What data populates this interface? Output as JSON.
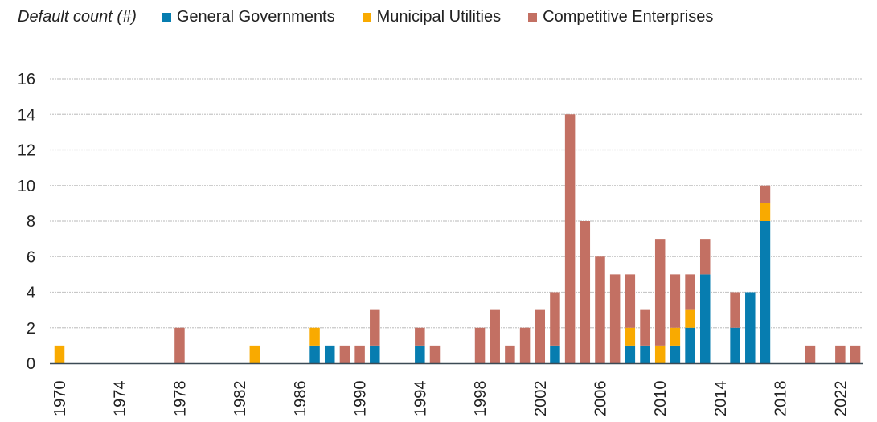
{
  "chart_data": {
    "type": "bar",
    "stacked": true,
    "title": "Default count (#)",
    "xlabel": "",
    "ylabel": "",
    "ylim": [
      0,
      16
    ],
    "yticks": [
      0,
      2,
      4,
      6,
      8,
      10,
      12,
      14,
      16
    ],
    "xticks": [
      "1970",
      "1974",
      "1978",
      "1982",
      "1986",
      "1990",
      "1994",
      "1998",
      "2002",
      "2006",
      "2010",
      "2014",
      "2018",
      "2022"
    ],
    "grid": true,
    "legend_placement": "top",
    "categories": [
      1970,
      1971,
      1972,
      1973,
      1974,
      1975,
      1976,
      1977,
      1978,
      1979,
      1980,
      1981,
      1982,
      1983,
      1984,
      1985,
      1986,
      1987,
      1988,
      1989,
      1990,
      1991,
      1992,
      1993,
      1994,
      1995,
      1996,
      1997,
      1998,
      1999,
      2000,
      2001,
      2002,
      2003,
      2004,
      2005,
      2006,
      2007,
      2008,
      2009,
      2010,
      2011,
      2012,
      2013,
      2014,
      2015,
      2016,
      2017,
      2018,
      2019,
      2020,
      2021,
      2022,
      2023
    ],
    "series": [
      {
        "name": "General Governments",
        "color": "#077DB0",
        "values": [
          0,
          0,
          0,
          0,
          0,
          0,
          0,
          0,
          0,
          0,
          0,
          0,
          0,
          0,
          0,
          0,
          0,
          1,
          1,
          0,
          0,
          1,
          0,
          0,
          1,
          0,
          0,
          0,
          0,
          0,
          0,
          0,
          0,
          1,
          0,
          0,
          0,
          0,
          1,
          1,
          0,
          1,
          2,
          5,
          0,
          2,
          4,
          8,
          0,
          0,
          0,
          0,
          0,
          0
        ]
      },
      {
        "name": "Municipal Utilities",
        "color": "#F9AA00",
        "values": [
          1,
          0,
          0,
          0,
          0,
          0,
          0,
          0,
          0,
          0,
          0,
          0,
          0,
          1,
          0,
          0,
          0,
          1,
          0,
          0,
          0,
          0,
          0,
          0,
          0,
          0,
          0,
          0,
          0,
          0,
          0,
          0,
          0,
          0,
          0,
          0,
          0,
          0,
          1,
          0,
          1,
          1,
          1,
          0,
          0,
          0,
          0,
          1,
          0,
          0,
          0,
          0,
          0,
          0
        ]
      },
      {
        "name": "Competitive Enterprises",
        "color": "#C37063",
        "values": [
          0,
          0,
          0,
          0,
          0,
          0,
          0,
          0,
          2,
          0,
          0,
          0,
          0,
          0,
          0,
          0,
          0,
          0,
          0,
          1,
          1,
          2,
          0,
          0,
          1,
          1,
          0,
          0,
          2,
          3,
          1,
          2,
          3,
          3,
          14,
          8,
          6,
          5,
          3,
          2,
          6,
          3,
          2,
          2,
          0,
          2,
          0,
          1,
          0,
          0,
          1,
          0,
          1,
          1
        ]
      }
    ]
  }
}
